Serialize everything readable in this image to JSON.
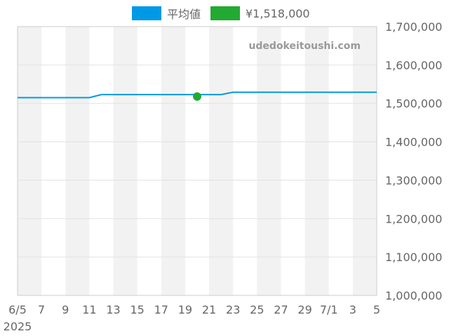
{
  "chart_data": {
    "type": "line",
    "watermark": "udedokeitoushi.com",
    "x_tick_labels": [
      "6/5",
      "7",
      "9",
      "11",
      "13",
      "15",
      "17",
      "19",
      "21",
      "23",
      "25",
      "27",
      "29",
      "7/1",
      "3",
      "5"
    ],
    "x_year_label": "2025",
    "y_tick_labels": [
      "1,700,000",
      "1,600,000",
      "1,500,000",
      "1,400,000",
      "1,300,000",
      "1,200,000",
      "1,100,000",
      "1,000,000"
    ],
    "ylim": [
      1000000,
      1700000
    ],
    "xlim": [
      "2025-06-05",
      "2025-07-05"
    ],
    "grid": true,
    "legend_position": "top-center",
    "series": [
      {
        "name": "平均値",
        "color": "#0099e6",
        "kind": "line",
        "points": [
          [
            "2025-06-05",
            1515000
          ],
          [
            "2025-06-11",
            1515000
          ],
          [
            "2025-06-12",
            1523000
          ],
          [
            "2025-06-22",
            1523000
          ],
          [
            "2025-06-23",
            1529000
          ],
          [
            "2025-07-05",
            1529000
          ]
        ]
      },
      {
        "name": "¥1,518,000",
        "color": "#22aa33",
        "kind": "point",
        "points": [
          [
            "2025-06-20",
            1518000
          ]
        ]
      }
    ]
  }
}
